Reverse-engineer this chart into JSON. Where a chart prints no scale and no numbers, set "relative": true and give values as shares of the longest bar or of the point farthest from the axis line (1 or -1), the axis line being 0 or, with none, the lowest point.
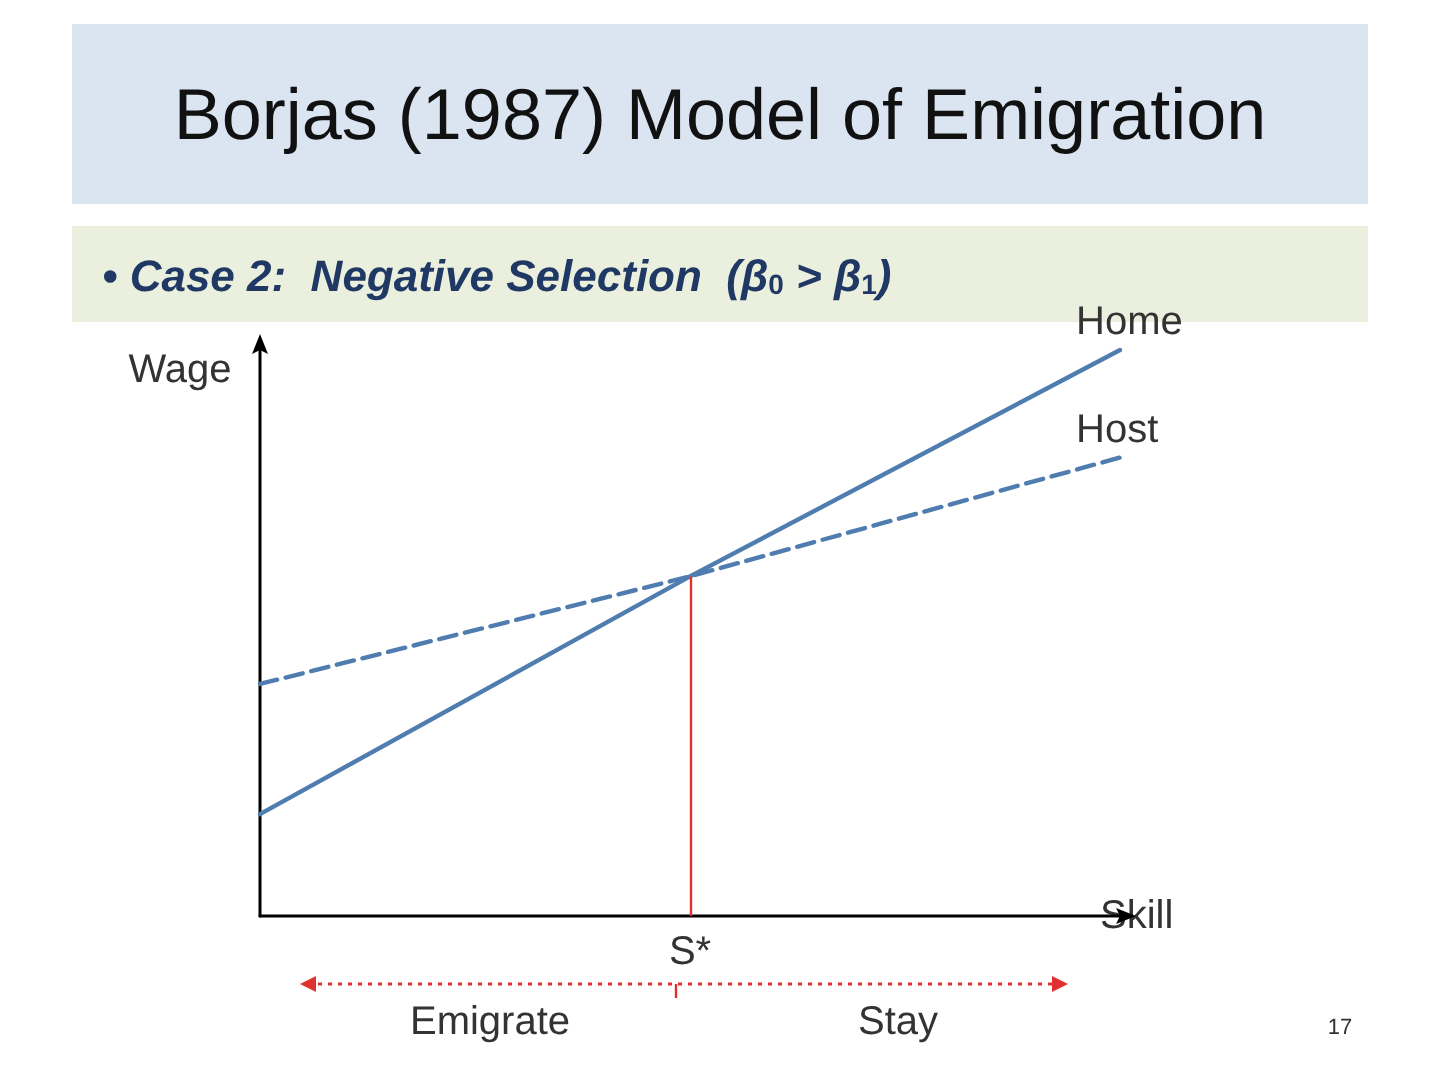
{
  "chart_data": {
    "type": "line",
    "title": "Borjas (1987) Model of Emigration",
    "subtitle": "• Case 2:  Negative Selection  (β$_{0}$ > β$_{1}$)",
    "xlabel": "Skill",
    "ylabel": "Wage",
    "relative": true,
    "legend": false,
    "grid": false,
    "marker": "none",
    "categories": [
      null,
      null,
      null
    ],
    "series": [
      {
        "name": "Home",
        "color": "#4f7db0",
        "line_style": "solid",
        "values": [
          0.18,
          0.6,
          1
        ]
      },
      {
        "name": "Host",
        "color": "#4f7db0",
        "line_style": "dashed",
        "values": [
          0.41,
          0.6,
          0.81
        ]
      }
    ],
    "ref_lines": [
      {
        "axis": "x",
        "label": "S*",
        "color": "#e03030"
      }
    ],
    "annotations": [
      "Emigrate",
      "Stay",
      "17"
    ]
  }
}
